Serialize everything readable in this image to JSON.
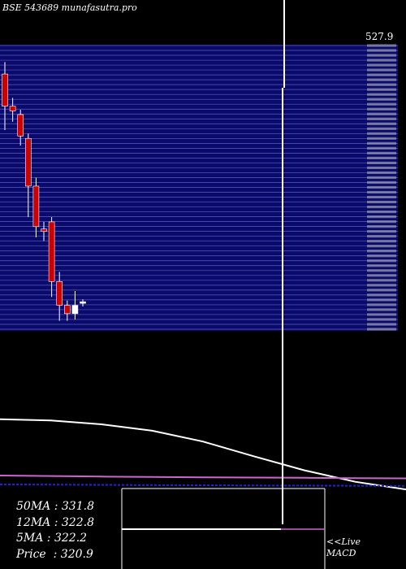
{
  "title": "BSE 543689 munafasutra.pro",
  "top_price_label": "527.9",
  "stats": [
    {
      "label": "50MA",
      "value": "331.8"
    },
    {
      "label": "12MA",
      "value": "322.8"
    },
    {
      "label": "5MA",
      "value": "322.2"
    },
    {
      "label": "Price",
      "value": "320.9"
    }
  ],
  "macd_labels": [
    "<<Live",
    "MACD"
  ],
  "colors": {
    "background": "#000000",
    "band": "#0a0a6a",
    "band_line": "#5a5ac8",
    "bear": "#cc0000",
    "bull": "#ffffff",
    "ma_short": "#ffffff",
    "ma_mid": "#cc66cc",
    "ma_long": "#2222dd"
  },
  "chart_data": {
    "type": "candlestick",
    "ylim": [
      300,
      540
    ],
    "candles": [
      {
        "open": 512,
        "high": 522,
        "low": 465,
        "close": 485
      },
      {
        "open": 485,
        "high": 492,
        "low": 472,
        "close": 481
      },
      {
        "open": 478,
        "high": 482,
        "low": 452,
        "close": 460
      },
      {
        "open": 458,
        "high": 462,
        "low": 392,
        "close": 418
      },
      {
        "open": 418,
        "high": 425,
        "low": 375,
        "close": 384
      },
      {
        "open": 382,
        "high": 388,
        "low": 372,
        "close": 380
      },
      {
        "open": 388,
        "high": 392,
        "low": 325,
        "close": 338
      },
      {
        "open": 338,
        "high": 346,
        "low": 305,
        "close": 318
      },
      {
        "open": 318,
        "high": 322,
        "low": 305,
        "close": 311
      },
      {
        "open": 311,
        "high": 330,
        "low": 306,
        "close": 318
      },
      {
        "open": 320,
        "high": 323,
        "low": 317,
        "close": 321
      }
    ],
    "moving_averages": [
      {
        "values": [
          420,
          418,
          412,
          402,
          385,
          362,
          340,
          322,
          310
        ]
      },
      {
        "values": [
          331.8,
          331.0,
          330.2,
          329.6,
          329.0,
          328.6,
          328.2,
          327.8,
          327.4
        ]
      },
      {
        "values": [
          318.0,
          317.6,
          317.2,
          316.8,
          316.5,
          316.2,
          316.0,
          315.8,
          315.5
        ]
      }
    ]
  }
}
